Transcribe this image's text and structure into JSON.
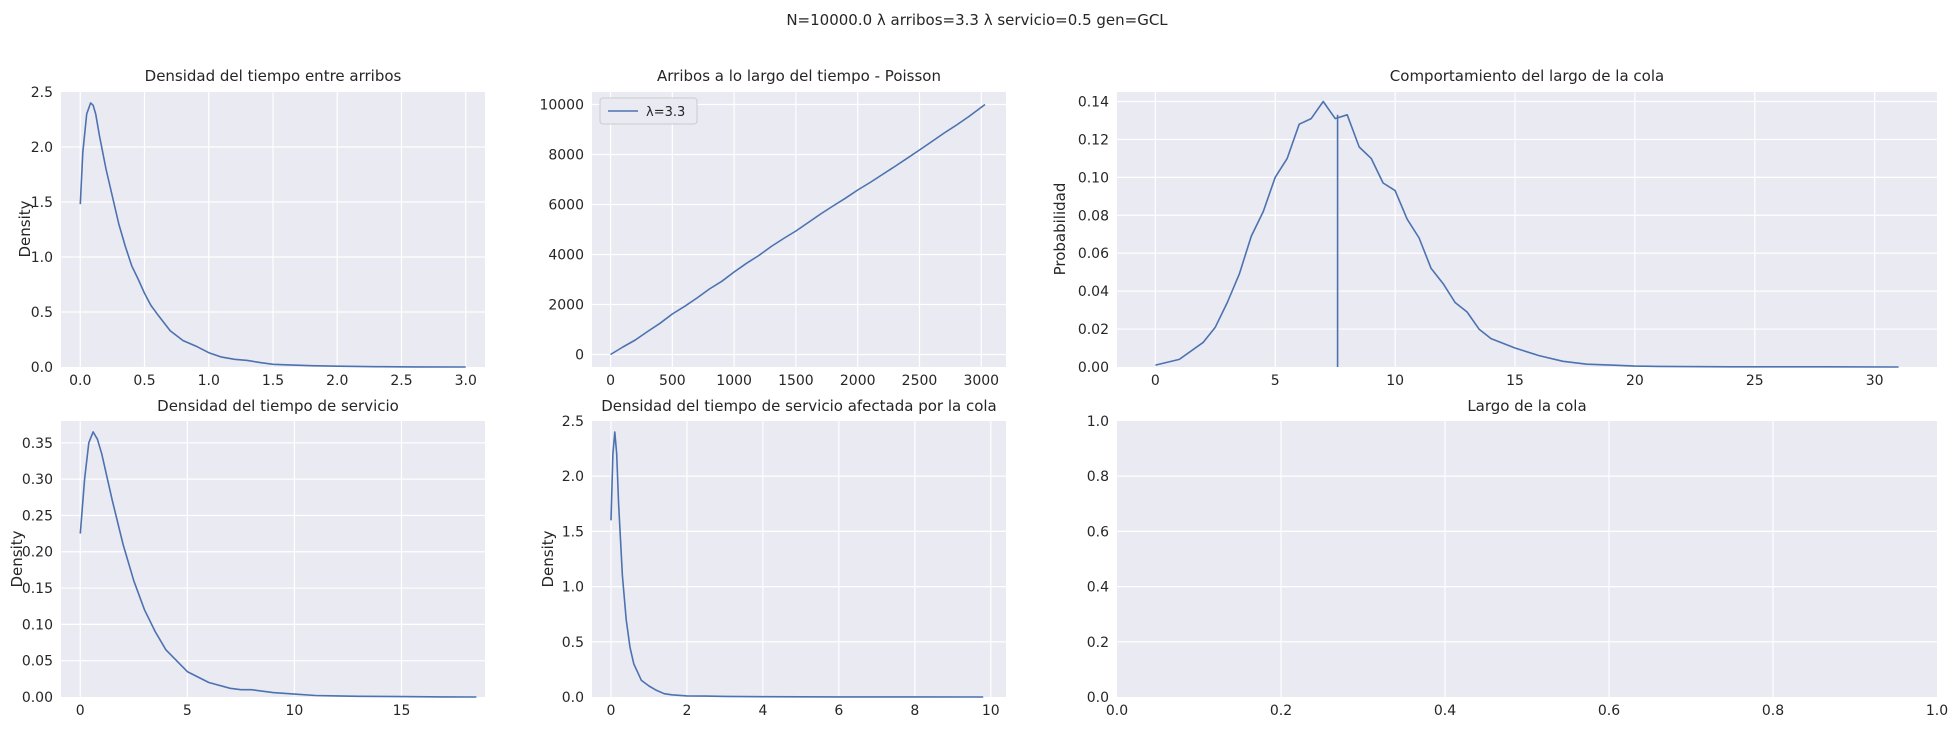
{
  "suptitle": "N=10000.0  λ arribos=3.3  λ servicio=0.5 gen=GCL",
  "colors": {
    "line": "#4c72b0",
    "panel_bg": "#eaeaf2",
    "grid": "#ffffff",
    "text": "#262626"
  },
  "chart_data": [
    {
      "id": "p1",
      "type": "line",
      "title": "Densidad del tiempo entre arribos",
      "xlabel": "",
      "ylabel": "Density",
      "xlim": [
        -0.15,
        3.15
      ],
      "ylim": [
        0,
        2.5
      ],
      "xticks": [
        0,
        0.5,
        1,
        1.5,
        2,
        2.5,
        3
      ],
      "xtick_labels": [
        "0.0",
        "0.5",
        "1.0",
        "1.5",
        "2.0",
        "2.5",
        "3.0"
      ],
      "yticks": [
        0,
        0.5,
        1,
        1.5,
        2,
        2.5
      ],
      "ytick_labels": [
        "0.0",
        "0.5",
        "1.0",
        "1.5",
        "2.0",
        "2.5"
      ],
      "grid": true,
      "series": [
        {
          "x": [
            0,
            0.02,
            0.05,
            0.08,
            0.1,
            0.12,
            0.15,
            0.2,
            0.25,
            0.3,
            0.35,
            0.4,
            0.45,
            0.5,
            0.55,
            0.6,
            0.7,
            0.8,
            0.9,
            1.0,
            1.1,
            1.2,
            1.3,
            1.4,
            1.5,
            1.6,
            1.8,
            2.0,
            2.3,
            2.6,
            3.0
          ],
          "y": [
            1.48,
            1.95,
            2.3,
            2.4,
            2.38,
            2.3,
            2.1,
            1.8,
            1.55,
            1.3,
            1.1,
            0.92,
            0.8,
            0.67,
            0.56,
            0.48,
            0.33,
            0.24,
            0.19,
            0.13,
            0.09,
            0.07,
            0.06,
            0.04,
            0.025,
            0.02,
            0.012,
            0.007,
            0.003,
            0.001,
            0.0
          ]
        }
      ]
    },
    {
      "id": "p2",
      "type": "line",
      "title": "Arribos a lo largo del tiempo - Poisson",
      "xlabel": "",
      "ylabel": "",
      "xlim": [
        -150,
        3200
      ],
      "ylim": [
        -500,
        10500
      ],
      "xticks": [
        0,
        500,
        1000,
        1500,
        2000,
        2500,
        3000
      ],
      "xtick_labels": [
        "0",
        "500",
        "1000",
        "1500",
        "2000",
        "2500",
        "3000"
      ],
      "yticks": [
        0,
        2000,
        4000,
        6000,
        8000,
        10000
      ],
      "ytick_labels": [
        "0",
        "2000",
        "4000",
        "6000",
        "8000",
        "10000"
      ],
      "grid": true,
      "legend": "top-left",
      "series": [
        {
          "name": "λ=3.3",
          "x": [
            0,
            100,
            200,
            300,
            400,
            500,
            600,
            700,
            800,
            900,
            1000,
            1100,
            1200,
            1300,
            1400,
            1500,
            1600,
            1700,
            1800,
            1900,
            2000,
            2100,
            2200,
            2300,
            2400,
            2500,
            2600,
            2700,
            2800,
            2900,
            3030
          ],
          "y": [
            0,
            300,
            580,
            920,
            1250,
            1620,
            1930,
            2260,
            2620,
            2930,
            3300,
            3650,
            3960,
            4320,
            4640,
            4940,
            5280,
            5620,
            5940,
            6250,
            6580,
            6880,
            7200,
            7520,
            7850,
            8180,
            8520,
            8860,
            9180,
            9520,
            10000
          ]
        }
      ]
    },
    {
      "id": "p3",
      "type": "line",
      "title": "Comportamiento del largo de la cola",
      "xlabel": "",
      "ylabel": "Probabilidad",
      "xlim": [
        -1.6,
        32.6
      ],
      "ylim": [
        0,
        0.145
      ],
      "xticks": [
        0,
        5,
        10,
        15,
        20,
        25,
        30
      ],
      "xtick_labels": [
        "0",
        "5",
        "10",
        "15",
        "20",
        "25",
        "30"
      ],
      "yticks": [
        0,
        0.02,
        0.04,
        0.06,
        0.08,
        0.1,
        0.12,
        0.14
      ],
      "ytick_labels": [
        "0.00",
        "0.02",
        "0.04",
        "0.06",
        "0.08",
        "0.10",
        "0.12",
        "0.14"
      ],
      "grid": true,
      "vline": {
        "x": 7.6,
        "y": 0.133
      },
      "series": [
        {
          "x": [
            0,
            1,
            2,
            2.5,
            3,
            3.5,
            4,
            4.5,
            5,
            5.5,
            6,
            6.5,
            7,
            7.5,
            8,
            8.5,
            9,
            9.5,
            10,
            10.5,
            11,
            11.5,
            12,
            12.5,
            13,
            13.5,
            14,
            15,
            16,
            17,
            18,
            19,
            20,
            21,
            22,
            24,
            26,
            28,
            31
          ],
          "y": [
            0.001,
            0.004,
            0.013,
            0.021,
            0.034,
            0.049,
            0.069,
            0.082,
            0.1,
            0.11,
            0.128,
            0.131,
            0.14,
            0.131,
            0.133,
            0.116,
            0.11,
            0.097,
            0.093,
            0.078,
            0.068,
            0.052,
            0.044,
            0.034,
            0.029,
            0.02,
            0.015,
            0.01,
            0.006,
            0.003,
            0.0015,
            0.001,
            0.0005,
            0.0003,
            0.0002,
            0.0001,
            0.0001,
            0.0001,
            0.0
          ]
        }
      ]
    },
    {
      "id": "p4",
      "type": "line",
      "title": "Densidad del tiempo de servicio",
      "xlabel": "",
      "ylabel": "Density",
      "xlim": [
        -0.9,
        18.9
      ],
      "ylim": [
        0,
        0.38
      ],
      "xticks": [
        0,
        5,
        10,
        15
      ],
      "xtick_labels": [
        "0",
        "5",
        "10",
        "15"
      ],
      "yticks": [
        0,
        0.05,
        0.1,
        0.15,
        0.2,
        0.25,
        0.3,
        0.35
      ],
      "ytick_labels": [
        "0.00",
        "0.05",
        "0.10",
        "0.15",
        "0.20",
        "0.25",
        "0.30",
        "0.35"
      ],
      "grid": true,
      "series": [
        {
          "x": [
            0,
            0.2,
            0.4,
            0.6,
            0.8,
            1.0,
            1.5,
            2.0,
            2.5,
            3.0,
            3.5,
            4.0,
            4.5,
            5.0,
            6.0,
            7.0,
            7.5,
            8.0,
            9.0,
            10.0,
            11.0,
            12.0,
            13.0,
            15.0,
            17.0,
            18.5
          ],
          "y": [
            0.225,
            0.3,
            0.35,
            0.365,
            0.355,
            0.335,
            0.27,
            0.21,
            0.16,
            0.12,
            0.09,
            0.065,
            0.05,
            0.035,
            0.02,
            0.012,
            0.01,
            0.01,
            0.006,
            0.004,
            0.002,
            0.0015,
            0.001,
            0.0005,
            0.0002,
            0.0
          ]
        }
      ]
    },
    {
      "id": "p5",
      "type": "line",
      "title": "Densidad del tiempo de servicio afectada por la cola",
      "xlabel": "",
      "ylabel": "Density",
      "xlim": [
        -0.5,
        10.4
      ],
      "ylim": [
        0,
        2.5
      ],
      "xticks": [
        0,
        2,
        4,
        6,
        8,
        10
      ],
      "xtick_labels": [
        "0",
        "2",
        "4",
        "6",
        "8",
        "10"
      ],
      "yticks": [
        0,
        0.5,
        1,
        1.5,
        2,
        2.5
      ],
      "ytick_labels": [
        "0.0",
        "0.5",
        "1.0",
        "1.5",
        "2.0",
        "2.5"
      ],
      "grid": true,
      "series": [
        {
          "x": [
            0,
            0.05,
            0.1,
            0.15,
            0.2,
            0.3,
            0.4,
            0.5,
            0.6,
            0.8,
            1.0,
            1.2,
            1.4,
            1.6,
            2.0,
            2.5,
            3.0,
            4.0,
            5.0,
            6.0,
            7.0,
            8.0,
            9.8
          ],
          "y": [
            1.6,
            2.2,
            2.4,
            2.2,
            1.75,
            1.1,
            0.7,
            0.45,
            0.3,
            0.15,
            0.1,
            0.06,
            0.03,
            0.02,
            0.01,
            0.008,
            0.005,
            0.003,
            0.002,
            0.001,
            0.001,
            0.001,
            0.0
          ]
        }
      ]
    },
    {
      "id": "p6",
      "type": "line",
      "title": "Largo de la cola",
      "xlabel": "",
      "ylabel": "",
      "xlim": [
        0,
        1
      ],
      "ylim": [
        0,
        1
      ],
      "xticks": [
        0,
        0.2,
        0.4,
        0.6,
        0.8,
        1.0
      ],
      "xtick_labels": [
        "0.0",
        "0.2",
        "0.4",
        "0.6",
        "0.8",
        "1.0"
      ],
      "yticks": [
        0,
        0.2,
        0.4,
        0.6,
        0.8,
        1.0
      ],
      "ytick_labels": [
        "0.0",
        "0.2",
        "0.4",
        "0.6",
        "0.8",
        "1.0"
      ],
      "grid": true,
      "series": []
    }
  ]
}
